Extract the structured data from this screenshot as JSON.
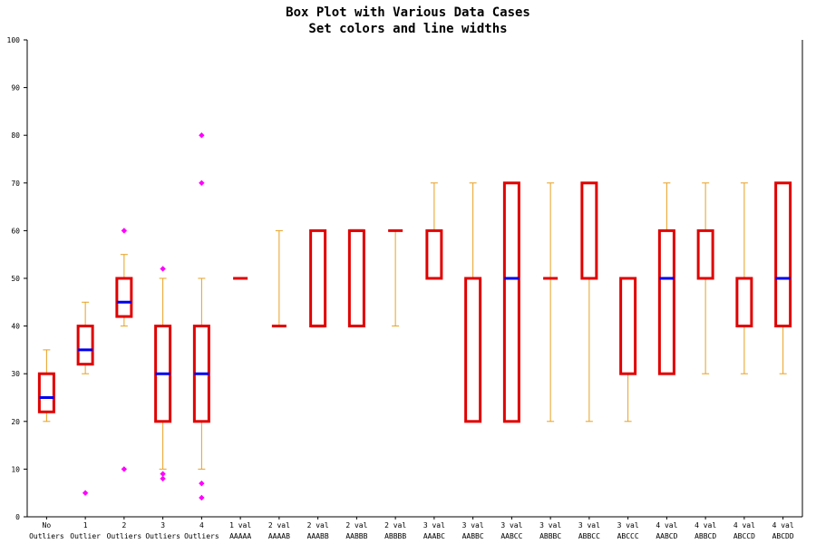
{
  "chart_data": {
    "type": "box",
    "title": "Box Plot with Various Data Cases",
    "subtitle": "Set colors and line widths",
    "ylim": [
      0,
      100
    ],
    "yticks": [
      0,
      10,
      20,
      30,
      40,
      50,
      60,
      70,
      80,
      90,
      100
    ],
    "colors": {
      "box": "#e00000",
      "median": "#0000ee",
      "whisker": "#e8a020",
      "outlier": "#ff00ff",
      "axis": "#000000"
    },
    "categories": [
      {
        "line1": "No",
        "line2": "Outliers",
        "whisker_low": 20,
        "q1": 22,
        "median": 25,
        "q3": 30,
        "whisker_high": 35,
        "outliers": []
      },
      {
        "line1": "1",
        "line2": "Outlier",
        "whisker_low": 30,
        "q1": 32,
        "median": 35,
        "q3": 40,
        "whisker_high": 45,
        "outliers": [
          5
        ]
      },
      {
        "line1": "2",
        "line2": "Outliers",
        "whisker_low": 40,
        "q1": 42,
        "median": 45,
        "q3": 50,
        "whisker_high": 55,
        "outliers": [
          10,
          60
        ]
      },
      {
        "line1": "3",
        "line2": "Outliers",
        "whisker_low": 10,
        "q1": 20,
        "median": 30,
        "q3": 40,
        "whisker_high": 50,
        "outliers": [
          8,
          9,
          52
        ]
      },
      {
        "line1": "4",
        "line2": "Outliers",
        "whisker_low": 10,
        "q1": 20,
        "median": 30,
        "q3": 40,
        "whisker_high": 50,
        "outliers": [
          4,
          7,
          70,
          80
        ]
      },
      {
        "line1": "1 val",
        "line2": "AAAAA",
        "whisker_low": 50,
        "q1": 50,
        "median": 50,
        "q3": 50,
        "whisker_high": 50,
        "outliers": []
      },
      {
        "line1": "2 val",
        "line2": "AAAAB",
        "whisker_low": 40,
        "q1": 40,
        "median": 40,
        "q3": 40,
        "whisker_high": 60,
        "outliers": []
      },
      {
        "line1": "2 val",
        "line2": "AAABB",
        "whisker_low": 40,
        "q1": 40,
        "median": 40,
        "q3": 60,
        "whisker_high": 60,
        "outliers": []
      },
      {
        "line1": "2 val",
        "line2": "AABBB",
        "whisker_low": 40,
        "q1": 40,
        "median": 60,
        "q3": 60,
        "whisker_high": 60,
        "outliers": []
      },
      {
        "line1": "2 val",
        "line2": "ABBBB",
        "whisker_low": 40,
        "q1": 60,
        "median": 60,
        "q3": 60,
        "whisker_high": 60,
        "outliers": []
      },
      {
        "line1": "3 val",
        "line2": "AAABC",
        "whisker_low": 50,
        "q1": 50,
        "median": 50,
        "q3": 60,
        "whisker_high": 70,
        "outliers": []
      },
      {
        "line1": "3 val",
        "line2": "AABBC",
        "whisker_low": 20,
        "q1": 20,
        "median": 50,
        "q3": 50,
        "whisker_high": 70,
        "outliers": []
      },
      {
        "line1": "3 val",
        "line2": "AABCC",
        "whisker_low": 20,
        "q1": 20,
        "median": 50,
        "q3": 70,
        "whisker_high": 70,
        "outliers": []
      },
      {
        "line1": "3 val",
        "line2": "ABBBC",
        "whisker_low": 20,
        "q1": 50,
        "median": 50,
        "q3": 50,
        "whisker_high": 70,
        "outliers": []
      },
      {
        "line1": "3 val",
        "line2": "ABBCC",
        "whisker_low": 20,
        "q1": 50,
        "median": 50,
        "q3": 70,
        "whisker_high": 70,
        "outliers": []
      },
      {
        "line1": "3 val",
        "line2": "ABCCC",
        "whisker_low": 20,
        "q1": 30,
        "median": 50,
        "q3": 50,
        "whisker_high": 50,
        "outliers": []
      },
      {
        "line1": "4 val",
        "line2": "AABCD",
        "whisker_low": 30,
        "q1": 30,
        "median": 50,
        "q3": 60,
        "whisker_high": 70,
        "outliers": []
      },
      {
        "line1": "4 val",
        "line2": "ABBCD",
        "whisker_low": 30,
        "q1": 50,
        "median": 50,
        "q3": 60,
        "whisker_high": 70,
        "outliers": []
      },
      {
        "line1": "4 val",
        "line2": "ABCCD",
        "whisker_low": 30,
        "q1": 40,
        "median": 50,
        "q3": 50,
        "whisker_high": 70,
        "outliers": []
      },
      {
        "line1": "4 val",
        "line2": "ABCDD",
        "whisker_low": 30,
        "q1": 40,
        "median": 50,
        "q3": 70,
        "whisker_high": 70,
        "outliers": []
      }
    ]
  }
}
